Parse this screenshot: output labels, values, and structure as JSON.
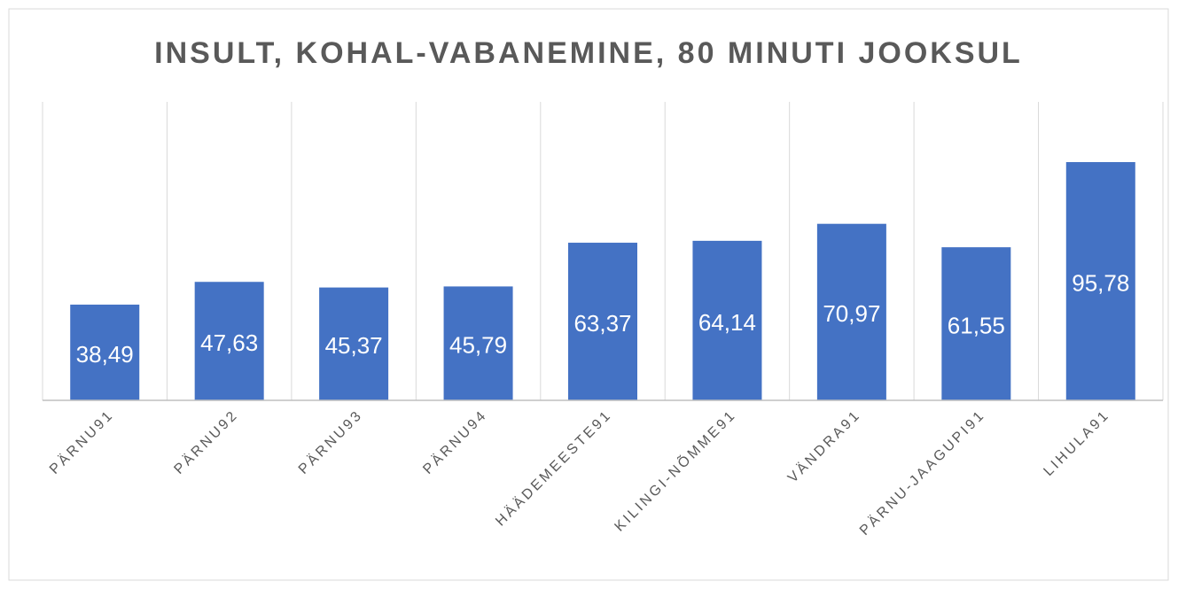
{
  "chart_data": {
    "type": "bar",
    "title": "INSULT, KOHAL-VABANEMINE, 80 MINUTI JOOKSUL",
    "categories": [
      "PÄRNU91",
      "PÄRNU92",
      "PÄRNU93",
      "PÄRNU94",
      "HÄÄDEMEESTE91",
      "KILINGI-NÕMME91",
      "VÄNDRA91",
      "PÄRNU-JAAGUPI91",
      "LIHULA91"
    ],
    "values": [
      38.49,
      47.63,
      45.37,
      45.79,
      63.37,
      64.14,
      70.97,
      61.55,
      95.78
    ],
    "value_labels": [
      "38,49",
      "47,63",
      "45,37",
      "45,79",
      "63,37",
      "64,14",
      "70,97",
      "61,55",
      "95,78"
    ],
    "color": "#4472c4",
    "ylim": [
      0,
      120
    ],
    "grid": true
  }
}
